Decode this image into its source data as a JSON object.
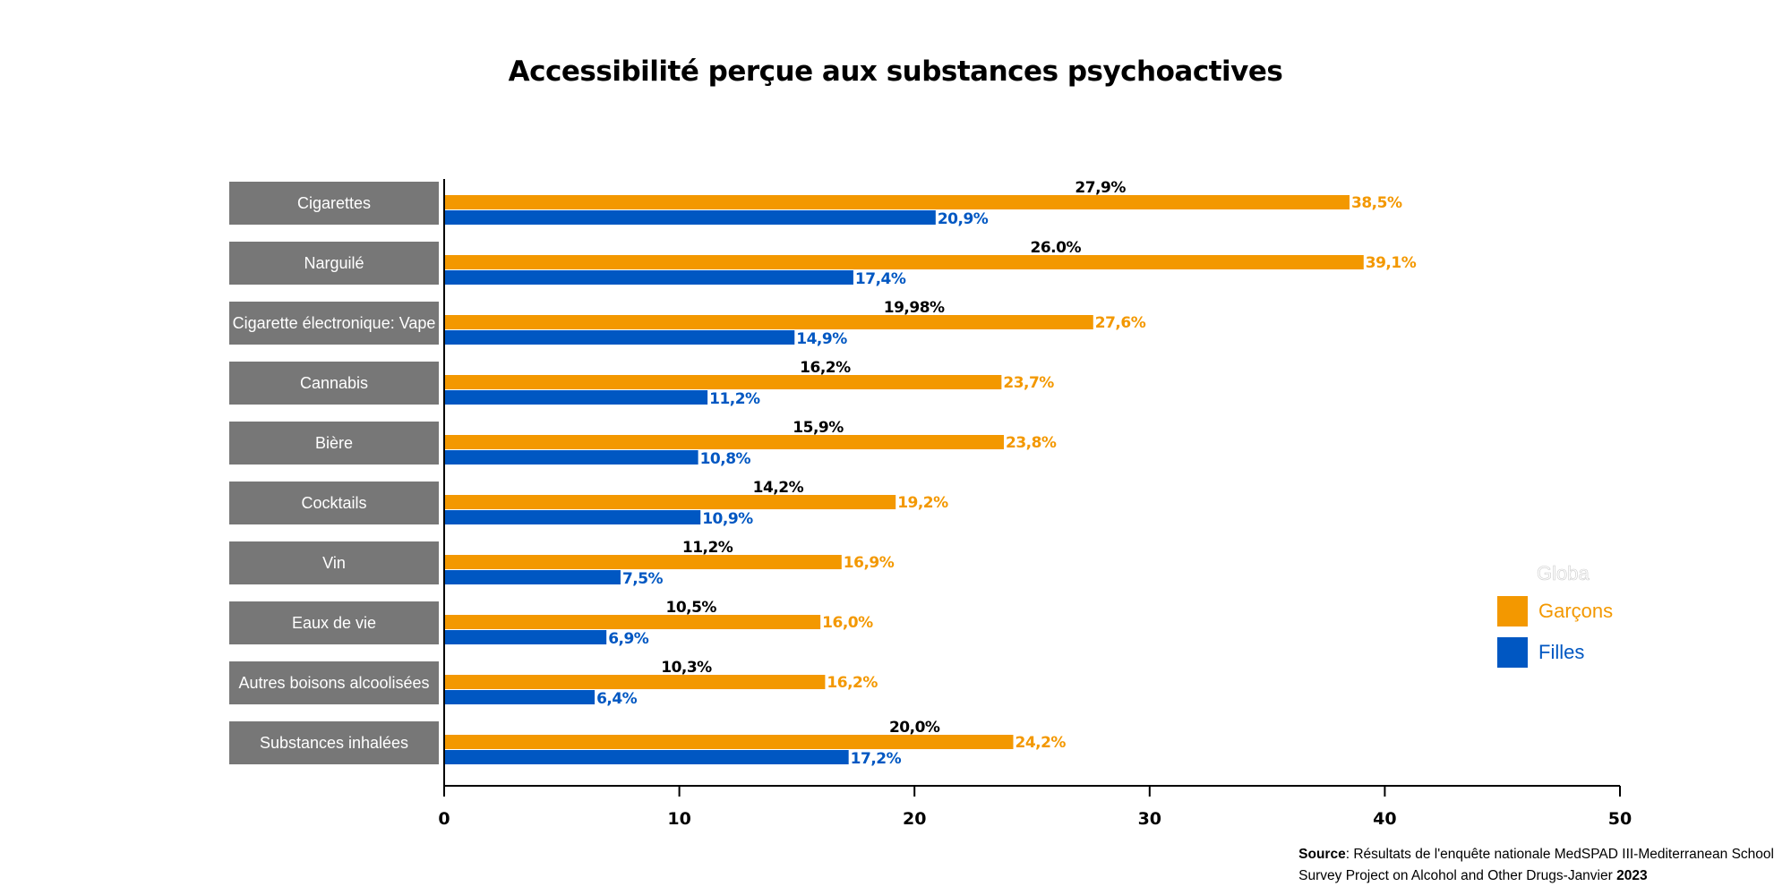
{
  "chart_data": {
    "type": "bar",
    "orientation": "horizontal",
    "title": "Accessibilité perçue aux substances psychoactives",
    "categories": [
      "Cigarettes",
      "Narguilé",
      "Cigarette électronique: Vape",
      "Cannabis",
      "Bière",
      "Cocktails",
      "Vin",
      "Eaux de vie",
      "Autres boisons alcoolisées",
      "Substances inhalées"
    ],
    "series": [
      {
        "name": "Garçons",
        "color": "#F39800",
        "values": [
          38.5,
          39.1,
          27.6,
          23.7,
          23.8,
          19.2,
          16.9,
          16.0,
          16.2,
          24.2
        ],
        "labels": [
          "38,5%",
          "39,1%",
          "27,6%",
          "23,7%",
          "23,8%",
          "19,2%",
          "16,9%",
          "16,0%",
          "16,2%",
          "24,2%"
        ]
      },
      {
        "name": "Filles",
        "color": "#0057C2",
        "values": [
          20.9,
          17.4,
          14.9,
          11.2,
          10.8,
          10.9,
          7.5,
          6.9,
          6.4,
          17.2
        ],
        "labels": [
          "20,9%",
          "17,4%",
          "14,9%",
          "11,2%",
          "10,8%",
          "10,9%",
          "7,5%",
          "6,9%",
          "6,4%",
          "17,2%"
        ]
      }
    ],
    "global_labels": [
      "27,9%",
      "26.0%",
      "19,98%",
      "16,2%",
      "15,9%",
      "14,2%",
      "11,2%",
      "10,5%",
      "10,3%",
      "20,0%"
    ],
    "global_values": [
      27.9,
      26.0,
      19.98,
      16.2,
      15.9,
      14.2,
      11.2,
      10.5,
      10.3,
      20.0
    ],
    "xlim": [
      0,
      50
    ],
    "xticks": [
      "0",
      "10",
      "20",
      "30",
      "40",
      "50"
    ],
    "legend_title": "Globa",
    "legend_position": "right"
  },
  "source": {
    "bold": "Source",
    "line1": ": Résultats de l'enquête nationale MedSPAD III-Mediterranean School",
    "line2": "Survey Project on Alcohol and Other Drugs-Janvier ",
    "year": "2023"
  }
}
